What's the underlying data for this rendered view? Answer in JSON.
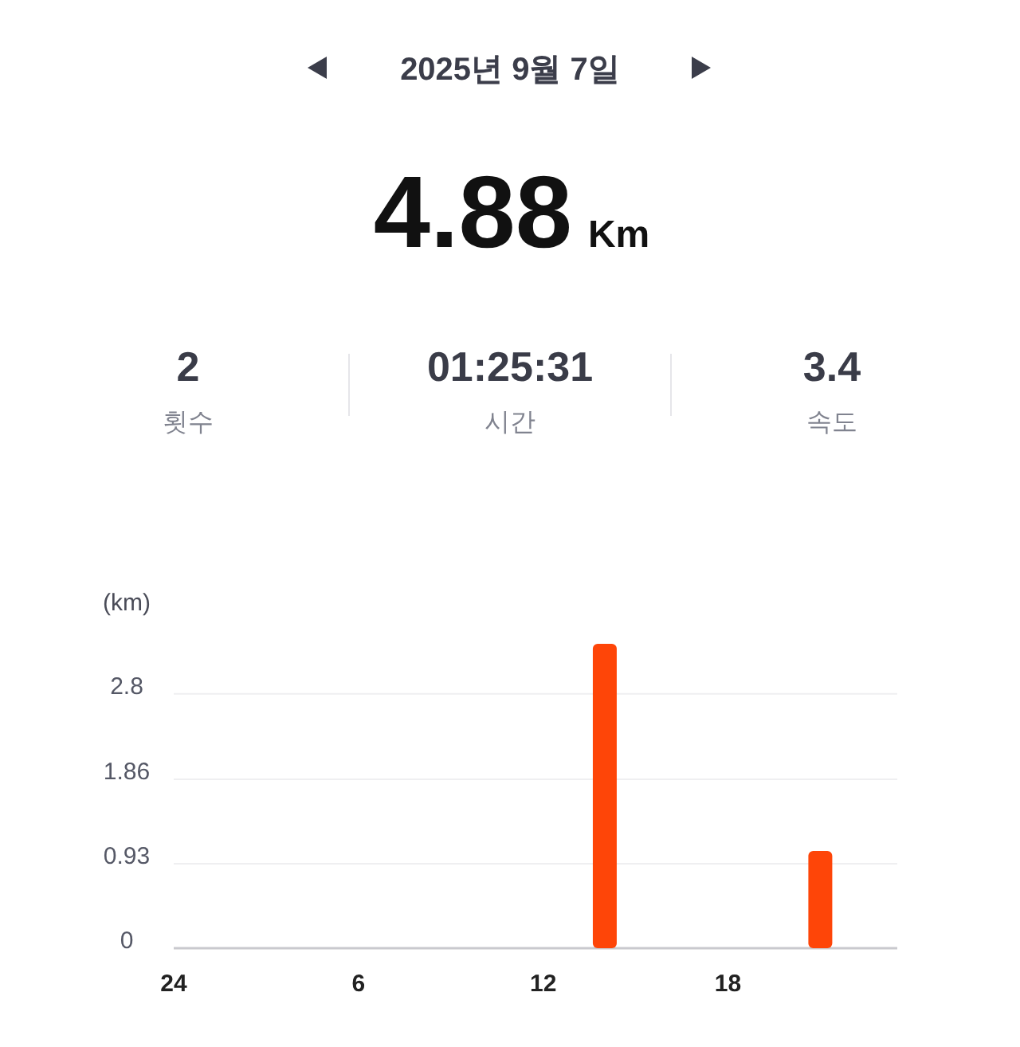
{
  "chart_data": [
    {
      "type": "other",
      "title": "2025년 9월 7일",
      "annotations": [
        "4.88",
        "Km",
        "2",
        "횟수",
        "01:25:31",
        "시간",
        "3.4",
        "속도"
      ]
    },
    {
      "type": "bar",
      "ylabel": "(km)",
      "categories": [
        "24",
        null,
        null,
        null,
        null,
        null,
        "6",
        null,
        null,
        null,
        null,
        null,
        "12",
        null,
        null,
        null,
        null,
        null,
        "18",
        null,
        null,
        null,
        null,
        null
      ],
      "values": [
        null,
        null,
        null,
        null,
        null,
        null,
        null,
        null,
        null,
        null,
        null,
        null,
        null,
        null,
        3.35,
        null,
        null,
        null,
        null,
        null,
        null,
        1.07,
        null,
        null
      ],
      "color": "#fe4508",
      "ylim": [
        0,
        3.35
      ],
      "yticks": [
        0,
        0.93,
        1.86,
        2.8
      ],
      "grid": "y"
    }
  ]
}
